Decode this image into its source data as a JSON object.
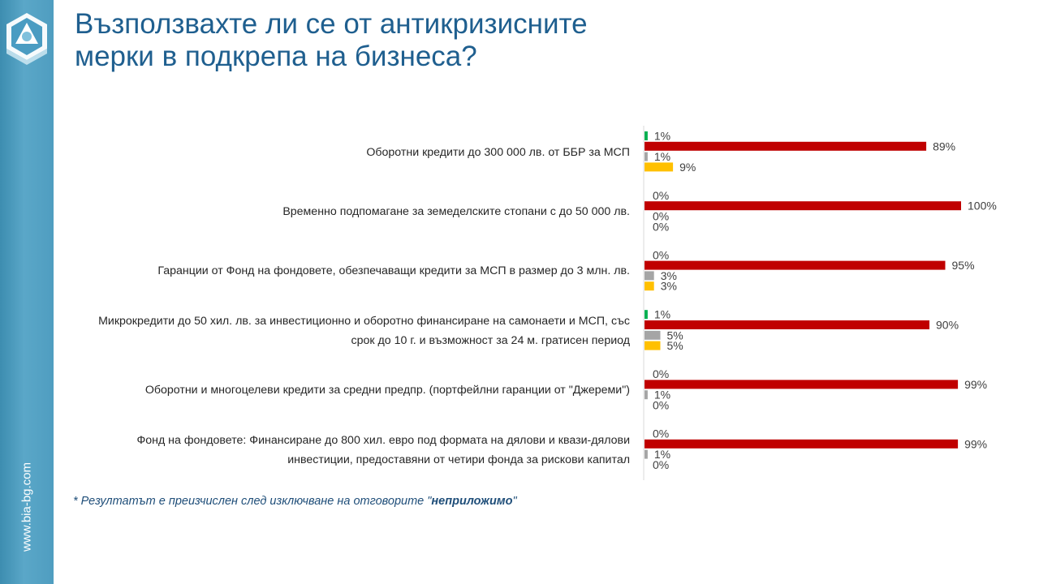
{
  "slide": {
    "title_line1": "Възползвахте ли се от антикризисните",
    "title_line2": "мерки в подкрепа на бизнеса?",
    "site_url": "www.bia-bg.com",
    "footnote_prefix": "* Резултатът е преизчислен след изключване на отговорите \"",
    "footnote_bold": "неприложимо",
    "footnote_suffix": "\""
  },
  "chart_data": {
    "type": "bar",
    "orientation": "horizontal",
    "categories": [
      "Оборотни кредити до 300 000 лв. от ББР за МСП",
      "Временно подпомагане за земеделските стопани с до 50 000 лв.",
      "Гаранции от Фонд на фондовете, обезпечаващи кредити за МСП в размер до 3 млн. лв.",
      "Микрокредити до 50 хил. лв. за инвестиционно и оборотно финансиране на самонаети и МСП, със срок до 10 г. и възможност за 24 м. гратисен период",
      "Оборотни и многоцелеви кредити за средни предпр. (портфейлни гаранции от \"Джереми\")",
      "Фонд на фондовете: Финансиране до 800 хил. евро под формата на дялови и квази-дялови инвестиции, предоставяни от четири фонда за рискови капитал"
    ],
    "series": [
      {
        "color": "#00b050",
        "values": [
          1,
          0,
          0,
          1,
          0,
          0
        ]
      },
      {
        "color": "#c00000",
        "values": [
          89,
          100,
          95,
          90,
          99,
          99
        ]
      },
      {
        "color": "#a5a5a5",
        "values": [
          1,
          0,
          3,
          5,
          1,
          1
        ]
      },
      {
        "color": "#ffc000",
        "values": [
          9,
          0,
          3,
          5,
          0,
          0
        ]
      }
    ],
    "value_suffix": "%",
    "xlim": [
      0,
      100
    ],
    "grid": false,
    "legend": "none"
  }
}
